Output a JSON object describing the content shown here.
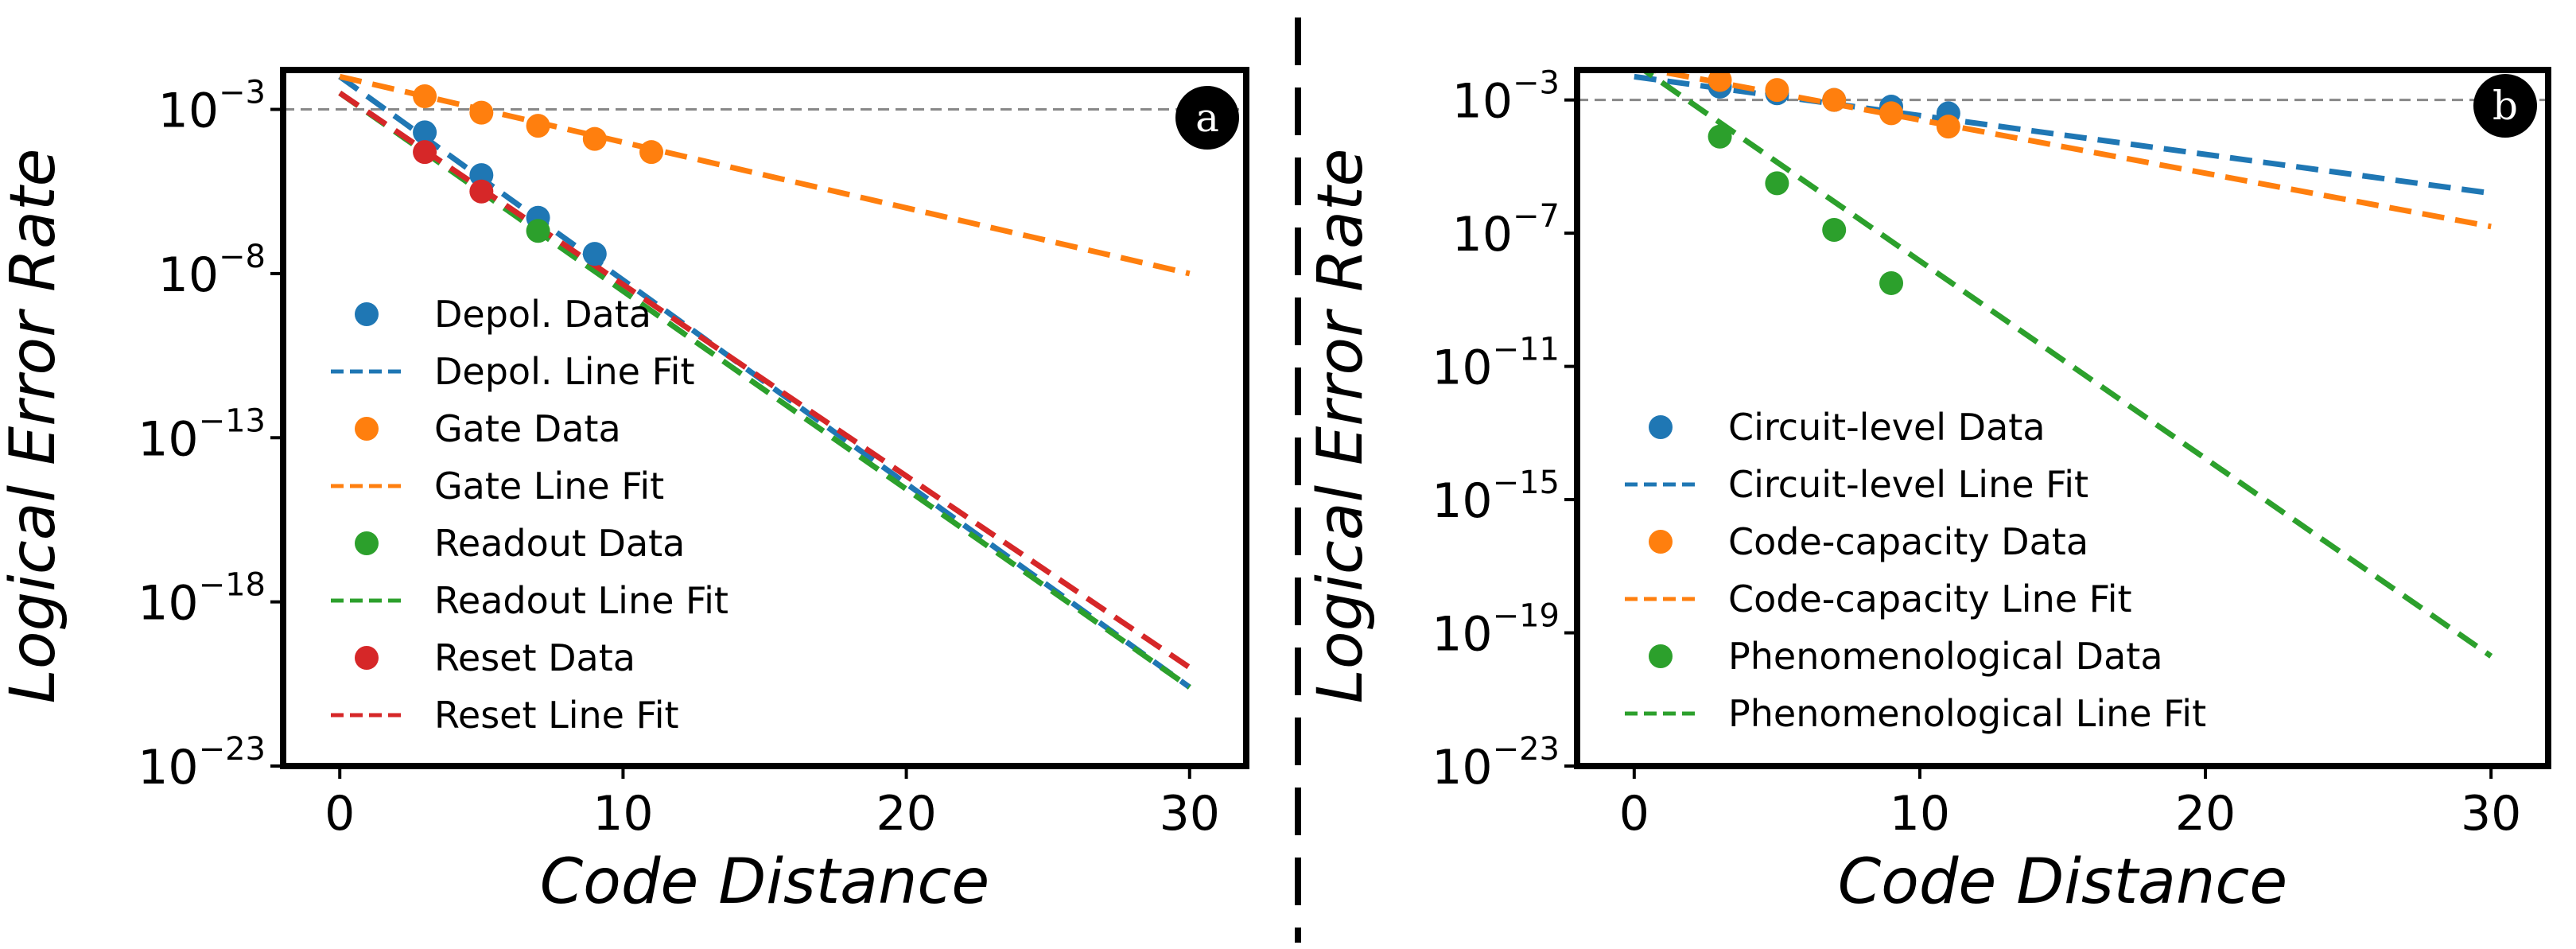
{
  "chart_data": [
    {
      "type": "scatter",
      "panel_label": "a",
      "xlabel": "Code Distance",
      "ylabel": "Logical Error Rate",
      "yscale": "log",
      "xlim": [
        -2,
        32
      ],
      "ylim_log10": [
        -23,
        -1.8
      ],
      "xticks": [
        0,
        10,
        20,
        30
      ],
      "yticks_log10": [
        -3,
        -8,
        -13,
        -18,
        -23
      ],
      "threshold_log10": -3,
      "legend_position": "lower-left",
      "series": [
        {
          "name": "Depol.",
          "data_label": "Depol. Data",
          "fit_label": "Depol. Line Fit",
          "color": "#1f77b4",
          "x": [
            3,
            5,
            7,
            9
          ],
          "log10_y": [
            -3.7,
            -5.0,
            -6.3,
            -7.4
          ],
          "fit": {
            "x0": 0,
            "log10_y0": -2.0,
            "x1": 30,
            "log10_y1": -20.6
          }
        },
        {
          "name": "Gate",
          "data_label": "Gate Data",
          "fit_label": "Gate Line Fit",
          "color": "#ff7f0e",
          "x": [
            3,
            5,
            7,
            9,
            11
          ],
          "log10_y": [
            -2.6,
            -3.1,
            -3.5,
            -3.9,
            -4.3
          ],
          "fit": {
            "x0": 0,
            "log10_y0": -2.0,
            "x1": 30,
            "log10_y1": -8.0
          }
        },
        {
          "name": "Readout",
          "data_label": "Readout Data",
          "fit_label": "Readout Line Fit",
          "color": "#2ca02c",
          "x": [
            7
          ],
          "log10_y": [
            -6.7
          ],
          "fit": {
            "x0": 0,
            "log10_y0": -2.5,
            "x1": 30,
            "log10_y1": -20.6
          }
        },
        {
          "name": "Reset",
          "data_label": "Reset Data",
          "fit_label": "Reset Line Fit",
          "color": "#d62728",
          "x": [
            3,
            5
          ],
          "log10_y": [
            -4.3,
            -5.5
          ],
          "fit": {
            "x0": 0,
            "log10_y0": -2.5,
            "x1": 30,
            "log10_y1": -20.0
          }
        }
      ]
    },
    {
      "type": "scatter",
      "panel_label": "b",
      "xlabel": "Code Distance",
      "ylabel": "Logical Error Rate",
      "yscale": "log",
      "xlim": [
        -2,
        32
      ],
      "ylim_log10": [
        -23,
        -2.1
      ],
      "xticks": [
        0,
        10,
        20,
        30
      ],
      "yticks_log10": [
        -3,
        -7,
        -11,
        -15,
        -19,
        -23
      ],
      "threshold_log10": -3,
      "legend_position": "lower-left",
      "series": [
        {
          "name": "Circuit-level",
          "data_label": "Circuit-level Data",
          "fit_label": "Circuit-level Line Fit",
          "color": "#1f77b4",
          "x": [
            3,
            5,
            7,
            9,
            11
          ],
          "log10_y": [
            -2.6,
            -2.8,
            -3.0,
            -3.2,
            -3.4
          ],
          "fit": {
            "x0": 0,
            "log10_y0": -2.3,
            "x1": 30,
            "log10_y1": -5.8
          }
        },
        {
          "name": "Code-capacity",
          "data_label": "Code-capacity Data",
          "fit_label": "Code-capacity Line Fit",
          "color": "#ff7f0e",
          "x": [
            3,
            5,
            7,
            9,
            11
          ],
          "log10_y": [
            -2.4,
            -2.7,
            -3.0,
            -3.4,
            -3.8
          ],
          "fit": {
            "x0": 0,
            "log10_y0": -2.0,
            "x1": 30,
            "log10_y1": -6.8
          }
        },
        {
          "name": "Phenomenological",
          "data_label": "Phenomenological Data",
          "fit_label": "Phenomenological Line Fit",
          "color": "#2ca02c",
          "x": [
            3,
            5,
            7,
            9
          ],
          "log10_y": [
            -4.1,
            -5.5,
            -6.9,
            -8.5
          ],
          "fit": {
            "x0": 0,
            "log10_y0": -1.9,
            "x1": 30,
            "log10_y1": -19.7
          }
        }
      ]
    }
  ]
}
